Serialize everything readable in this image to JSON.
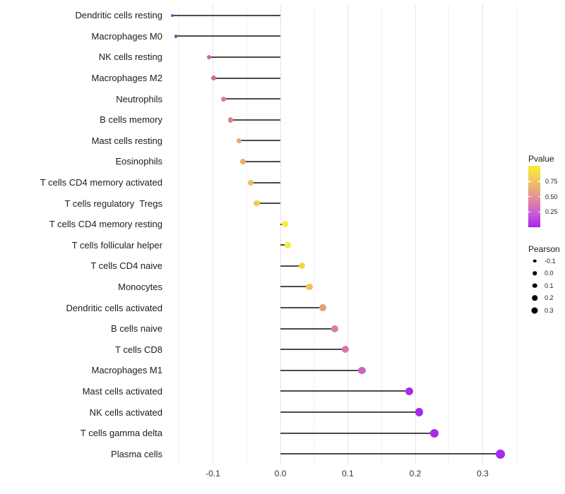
{
  "chart_data": {
    "type": "scatter",
    "variant": "lollipop",
    "title": "",
    "xlabel": "",
    "ylabel": "",
    "xlim": [
      -0.169,
      0.356
    ],
    "x_major_ticks": [
      -0.1,
      0.0,
      0.1,
      0.2,
      0.3
    ],
    "x_major_tick_labels": [
      "-0.1",
      "0.0",
      "0.1",
      "0.2",
      "0.3"
    ],
    "x_minor_ticks": [
      -0.15,
      -0.05,
      0.05,
      0.15,
      0.25,
      0.35
    ],
    "grid": "vertical-only",
    "stem_color": "#4a4a4a",
    "baseline_x": 0.0,
    "rows": [
      {
        "label": "Dendritic cells resting",
        "pearson": -0.16,
        "dot_color": "#A135D2",
        "dot_size": 4
      },
      {
        "label": "Macrophages M0",
        "pearson": -0.155,
        "dot_color": "#A638C9",
        "dot_size": 4.5
      },
      {
        "label": "NK cells resting",
        "pearson": -0.106,
        "dot_color": "#C664AE",
        "dot_size": 6.5
      },
      {
        "label": "Macrophages M2",
        "pearson": -0.099,
        "dot_color": "#CA6CA1",
        "dot_size": 7
      },
      {
        "label": "Neutrophils",
        "pearson": -0.084,
        "dot_color": "#D57E92",
        "dot_size": 7
      },
      {
        "label": "B cells memory",
        "pearson": -0.074,
        "dot_color": "#DB8A88",
        "dot_size": 7.5
      },
      {
        "label": "Mast cells resting",
        "pearson": -0.061,
        "dot_color": "#E8A473",
        "dot_size": 7.5
      },
      {
        "label": "Eosinophils",
        "pearson": -0.056,
        "dot_color": "#EBAB6A",
        "dot_size": 8
      },
      {
        "label": "T cells CD4 memory activated",
        "pearson": -0.044,
        "dot_color": "#EFBD5C",
        "dot_size": 8
      },
      {
        "label": "T cells regulatory  Tregs",
        "pearson": -0.035,
        "dot_color": "#F1CA52",
        "dot_size": 8.5
      },
      {
        "label": "T cells CD4 memory resting",
        "pearson": 0.007,
        "dot_color": "#F8EE33",
        "dot_size": 9
      },
      {
        "label": "T cells follicular helper",
        "pearson": 0.011,
        "dot_color": "#F8ED36",
        "dot_size": 9
      },
      {
        "label": "T cells CD4 naive",
        "pearson": 0.032,
        "dot_color": "#F3D747",
        "dot_size": 9
      },
      {
        "label": "Monocytes",
        "pearson": 0.043,
        "dot_color": "#F0C25A",
        "dot_size": 9.5
      },
      {
        "label": "Dendritic cells activated",
        "pearson": 0.063,
        "dot_color": "#E6A176",
        "dot_size": 9.5
      },
      {
        "label": "B cells naive",
        "pearson": 0.081,
        "dot_color": "#DA8290",
        "dot_size": 10
      },
      {
        "label": "T cells CD8",
        "pearson": 0.096,
        "dot_color": "#D577A7",
        "dot_size": 10
      },
      {
        "label": "Macrophages M1",
        "pearson": 0.121,
        "dot_color": "#CB63C3",
        "dot_size": 10.5
      },
      {
        "label": "Mast cells activated",
        "pearson": 0.191,
        "dot_color": "#A62BE8",
        "dot_size": 11.5
      },
      {
        "label": "NK cells activated",
        "pearson": 0.206,
        "dot_color": "#A62BE8",
        "dot_size": 11.5
      },
      {
        "label": "T cells gamma delta",
        "pearson": 0.228,
        "dot_color": "#A52BE8",
        "dot_size": 12
      },
      {
        "label": "Plasma cells",
        "pearson": 0.326,
        "dot_color": "#A52BE8",
        "dot_size": 13
      }
    ],
    "legend_pvalue": {
      "title": "Pvalue",
      "gradient_top_to_bottom": [
        "#F9EE35",
        "#F2CE5B",
        "#E8A87E",
        "#DD7FA9",
        "#C856DC",
        "#A922F0"
      ],
      "range": [
        0,
        1
      ],
      "ticks": [
        {
          "label": "0.75",
          "value": 0.75
        },
        {
          "label": "0.50",
          "value": 0.5
        },
        {
          "label": "0.25",
          "value": 0.25
        }
      ]
    },
    "legend_pearson": {
      "title": "Pearson",
      "swatch_color": "#000000",
      "items": [
        {
          "label": "-0.1",
          "size": 4.5
        },
        {
          "label": "0.0",
          "size": 5.5
        },
        {
          "label": "0.1",
          "size": 6.5
        },
        {
          "label": "0.2",
          "size": 7.5
        },
        {
          "label": "0.3",
          "size": 9
        }
      ]
    }
  }
}
